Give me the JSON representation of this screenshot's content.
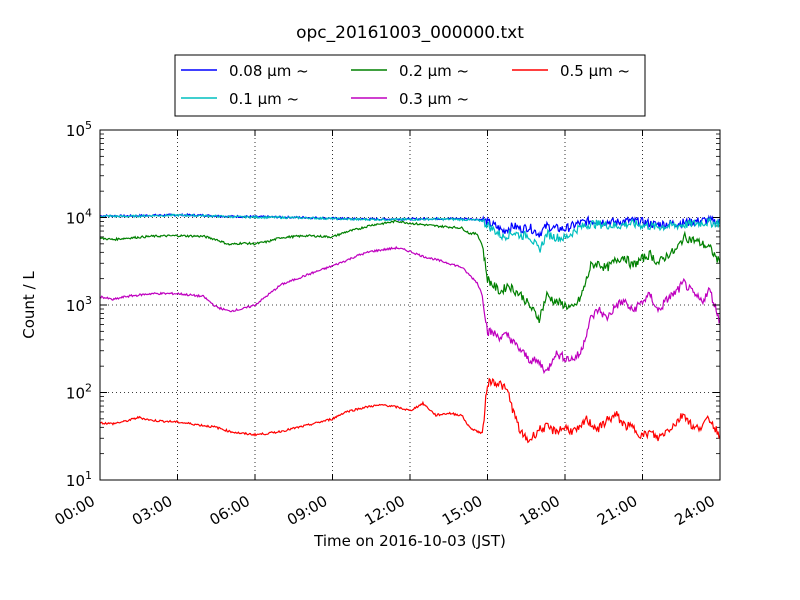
{
  "chart_data": {
    "type": "line",
    "title": "opc_20161003_000000.txt",
    "xlabel": "Time on 2016-10-03 (JST)",
    "ylabel": "Count / L",
    "yscale": "log",
    "xlim": [
      0,
      24
    ],
    "ylim": [
      10,
      100000
    ],
    "grid": true,
    "legend_position": "top-center",
    "x_ticks": [
      0,
      3,
      6,
      9,
      12,
      15,
      18,
      21,
      24
    ],
    "x_tick_labels": [
      "00:00",
      "03:00",
      "06:00",
      "09:00",
      "12:00",
      "15:00",
      "18:00",
      "21:00",
      "24:00"
    ],
    "y_ticks": [
      {
        "value": 10,
        "base": "10",
        "exp": "1"
      },
      {
        "value": 100,
        "base": "10",
        "exp": "2"
      },
      {
        "value": 1000,
        "base": "10",
        "exp": "3"
      },
      {
        "value": 10000,
        "base": "10",
        "exp": "4"
      },
      {
        "value": 100000,
        "base": "10",
        "exp": "5"
      }
    ],
    "series": [
      {
        "name": "0.08 µm ~",
        "color": "#0000ff",
        "x": [
          0,
          1,
          2,
          3,
          4,
          5,
          6,
          7,
          8,
          9,
          10,
          11,
          12,
          13,
          14,
          14.8,
          15,
          15.3,
          15.6,
          16,
          16.3,
          16.6,
          17,
          17.3,
          17.6,
          18,
          18.5,
          19,
          19.5,
          20,
          20.5,
          21,
          21.5,
          22,
          22.5,
          23,
          23.5,
          24
        ],
        "values": [
          10500,
          10400,
          10600,
          10700,
          10600,
          10300,
          10200,
          10100,
          10000,
          9800,
          9600,
          9600,
          9600,
          9700,
          9700,
          9500,
          8800,
          8000,
          7000,
          8000,
          7400,
          7800,
          6500,
          8000,
          7500,
          7400,
          8500,
          9200,
          9000,
          8800,
          9200,
          8900,
          8300,
          8500,
          8700,
          9000,
          9300,
          8800
        ]
      },
      {
        "name": "0.1 µm ~",
        "color": "#00bfbf",
        "x": [
          0,
          1,
          2,
          3,
          4,
          5,
          6,
          7,
          8,
          9,
          10,
          11,
          12,
          13,
          14,
          14.8,
          15,
          15.3,
          15.6,
          16,
          16.3,
          16.6,
          17,
          17.3,
          17.6,
          18,
          18.5,
          19,
          19.5,
          20,
          20.5,
          21,
          21.5,
          22,
          22.5,
          23,
          23.5,
          24
        ],
        "values": [
          10400,
          10300,
          10500,
          10600,
          10500,
          10200,
          10100,
          10000,
          9900,
          9700,
          9500,
          9500,
          9500,
          9600,
          9500,
          9200,
          8200,
          7000,
          6000,
          6800,
          6200,
          6300,
          4200,
          6500,
          6000,
          5800,
          7500,
          8500,
          8300,
          8000,
          8500,
          8200,
          7800,
          8000,
          8200,
          8500,
          8800,
          8500
        ]
      },
      {
        "name": "0.2 µm ~",
        "color": "#008000",
        "x": [
          0,
          0.5,
          1,
          2,
          3,
          4,
          4.5,
          5,
          5.5,
          6,
          6.5,
          7,
          8,
          9,
          9.5,
          10,
          10.5,
          11,
          11.5,
          12,
          12.5,
          13,
          13.5,
          14,
          14.3,
          14.6,
          14.8,
          15,
          15.2,
          15.5,
          15.8,
          16,
          16.3,
          16.6,
          17,
          17.3,
          17.6,
          18,
          18.3,
          18.6,
          18.8,
          19,
          19.3,
          19.6,
          20,
          20.3,
          20.6,
          21,
          21.3,
          21.6,
          22,
          22.3,
          22.6,
          23,
          23.3,
          23.6,
          24
        ],
        "values": [
          5800,
          5600,
          5800,
          6100,
          6200,
          6100,
          5600,
          4900,
          5100,
          5000,
          5300,
          5900,
          6200,
          6000,
          6800,
          7400,
          8200,
          8600,
          9100,
          8600,
          8300,
          8000,
          7800,
          7600,
          6600,
          6500,
          4800,
          2000,
          1700,
          1400,
          1700,
          1500,
          1300,
          1000,
          700,
          1300,
          1100,
          1000,
          900,
          1200,
          1800,
          2800,
          3000,
          2600,
          3300,
          3600,
          2800,
          3400,
          3800,
          3000,
          3800,
          4200,
          6000,
          5500,
          5000,
          4500,
          3000
        ]
      },
      {
        "name": "0.3 µm ~",
        "color": "#bf00bf",
        "x": [
          0,
          0.5,
          1,
          2,
          3,
          4,
          4.5,
          5,
          5.5,
          6,
          6.5,
          7,
          8,
          9,
          9.5,
          10,
          10.5,
          11,
          11.5,
          12,
          12.5,
          13,
          13.5,
          14,
          14.3,
          14.6,
          14.8,
          15,
          15.2,
          15.5,
          15.8,
          16,
          16.3,
          16.6,
          17,
          17.3,
          17.6,
          18,
          18.3,
          18.6,
          18.8,
          19,
          19.3,
          19.6,
          20,
          20.3,
          20.6,
          21,
          21.3,
          21.6,
          22,
          22.3,
          22.6,
          23,
          23.3,
          23.6,
          24
        ],
        "values": [
          1250,
          1150,
          1250,
          1350,
          1350,
          1250,
          950,
          850,
          900,
          1000,
          1300,
          1700,
          2200,
          2800,
          3200,
          3700,
          4100,
          4300,
          4500,
          4100,
          3600,
          3300,
          3000,
          2700,
          2200,
          1800,
          1300,
          500,
          480,
          430,
          450,
          370,
          300,
          240,
          220,
          170,
          280,
          250,
          240,
          280,
          450,
          700,
          900,
          700,
          1000,
          1100,
          850,
          1100,
          1300,
          850,
          1200,
          1400,
          1800,
          1300,
          1100,
          1500,
          650
        ]
      },
      {
        "name": "0.5 µm ~",
        "color": "#ff0000",
        "x": [
          0,
          0.5,
          1,
          1.5,
          2,
          3,
          4,
          4.5,
          5,
          5.5,
          6,
          6.5,
          7,
          8,
          9,
          9.5,
          10,
          10.5,
          11,
          11.5,
          12,
          12.5,
          13,
          13.5,
          14,
          14.3,
          14.6,
          14.8,
          15,
          15.2,
          15.5,
          15.8,
          16,
          16.3,
          16.6,
          17,
          17.3,
          17.6,
          18,
          18.3,
          18.6,
          18.8,
          19,
          19.3,
          19.6,
          20,
          20.3,
          20.6,
          21,
          21.3,
          21.6,
          22,
          22.3,
          22.6,
          23,
          23.3,
          23.6,
          24
        ],
        "values": [
          45,
          44,
          47,
          52,
          48,
          46,
          42,
          40,
          36,
          34,
          33,
          34,
          36,
          42,
          50,
          60,
          65,
          70,
          72,
          68,
          62,
          75,
          55,
          58,
          55,
          40,
          36,
          34,
          130,
          135,
          125,
          100,
          60,
          34,
          28,
          38,
          40,
          36,
          40,
          36,
          38,
          50,
          44,
          38,
          48,
          55,
          42,
          40,
          32,
          35,
          30,
          38,
          45,
          58,
          38,
          42,
          50,
          32
        ]
      }
    ]
  }
}
